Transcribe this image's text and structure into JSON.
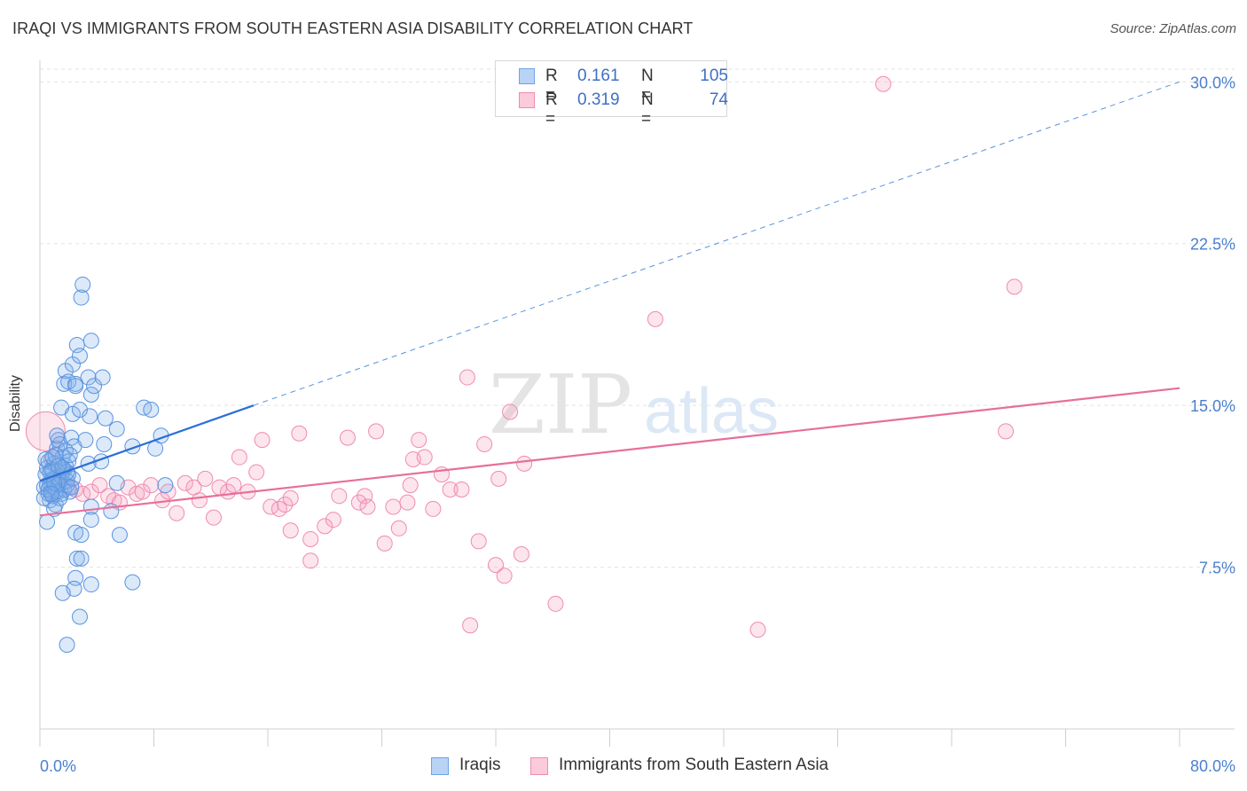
{
  "title": "IRAQI VS IMMIGRANTS FROM SOUTH EASTERN ASIA DISABILITY CORRELATION CHART",
  "source": "Source: ZipAtlas.com",
  "watermark": {
    "zip": "ZIP",
    "atlas": "atlas"
  },
  "legend": {
    "series1": {
      "r_label": "R =",
      "r_value": "0.161",
      "n_label": "N =",
      "n_value": "105",
      "color": "#6fa3e8"
    },
    "series2": {
      "r_label": "R =",
      "r_value": "0.319",
      "n_label": "N =",
      "n_value": "74",
      "color": "#f08bb0"
    }
  },
  "bottom_legend": {
    "series1": "Iraqis",
    "series2": "Immigrants from South Eastern Asia"
  },
  "chart_data": {
    "type": "scatter",
    "title": "IRAQI VS IMMIGRANTS FROM SOUTH EASTERN ASIA DISABILITY CORRELATION CHART",
    "xlabel": "",
    "ylabel": "Disability",
    "xlim": [
      0,
      80
    ],
    "ylim": [
      0,
      31
    ],
    "x_tick_labels": [
      {
        "value": 0,
        "label": "0.0%"
      },
      {
        "value": 80,
        "label": "80.0%"
      }
    ],
    "y_tick_labels": [
      {
        "value": 7.5,
        "label": "7.5%"
      },
      {
        "value": 15,
        "label": "15.0%"
      },
      {
        "value": 22.5,
        "label": "22.5%"
      },
      {
        "value": 30,
        "label": "30.0%"
      }
    ],
    "x_minor_ticks": [
      0,
      8,
      16,
      24,
      32,
      40,
      48,
      56,
      64,
      72,
      80
    ],
    "grid": true,
    "series": [
      {
        "name": "Iraqis",
        "color": "#6fa3e8",
        "trend": {
          "x0": 0,
          "y0": 11.5,
          "x1": 15,
          "y1": 15.0,
          "dashed_to_x": 80,
          "dashed_to_y": 30.0
        },
        "points": [
          [
            0.3,
            11.2
          ],
          [
            0.4,
            11.8
          ],
          [
            0.5,
            11.3
          ],
          [
            0.6,
            10.9
          ],
          [
            0.7,
            11.4
          ],
          [
            0.8,
            11.0
          ],
          [
            0.9,
            11.6
          ],
          [
            1.0,
            11.2
          ],
          [
            0.5,
            12.1
          ],
          [
            0.6,
            12.4
          ],
          [
            0.8,
            12.0
          ],
          [
            1.0,
            12.3
          ],
          [
            1.2,
            11.7
          ],
          [
            1.4,
            11.5
          ],
          [
            1.6,
            11.9
          ],
          [
            1.8,
            12.2
          ],
          [
            0.7,
            10.6
          ],
          [
            0.9,
            10.8
          ],
          [
            1.1,
            10.4
          ],
          [
            1.3,
            11.0
          ],
          [
            1.5,
            10.9
          ],
          [
            1.7,
            11.1
          ],
          [
            1.9,
            11.3
          ],
          [
            2.0,
            11.8
          ],
          [
            1.2,
            13.0
          ],
          [
            1.3,
            13.4
          ],
          [
            1.4,
            13.2
          ],
          [
            1.6,
            12.6
          ],
          [
            1.8,
            12.9
          ],
          [
            2.0,
            12.4
          ],
          [
            2.2,
            13.5
          ],
          [
            2.4,
            13.1
          ],
          [
            1.5,
            14.9
          ],
          [
            1.7,
            16.0
          ],
          [
            1.8,
            16.6
          ],
          [
            2.0,
            16.1
          ],
          [
            2.3,
            16.9
          ],
          [
            2.3,
            14.6
          ],
          [
            2.5,
            16.0
          ],
          [
            2.5,
            15.9
          ],
          [
            2.6,
            17.8
          ],
          [
            2.8,
            17.3
          ],
          [
            2.9,
            20.0
          ],
          [
            3.0,
            20.6
          ],
          [
            3.6,
            18.0
          ],
          [
            3.4,
            16.3
          ],
          [
            3.6,
            15.5
          ],
          [
            3.8,
            15.9
          ],
          [
            4.4,
            16.3
          ],
          [
            4.6,
            14.4
          ],
          [
            4.3,
            12.4
          ],
          [
            4.5,
            13.2
          ],
          [
            3.4,
            12.3
          ],
          [
            3.2,
            13.4
          ],
          [
            2.8,
            14.8
          ],
          [
            3.5,
            14.5
          ],
          [
            5.4,
            13.9
          ],
          [
            6.5,
            13.1
          ],
          [
            7.3,
            14.9
          ],
          [
            7.8,
            14.8
          ],
          [
            8.1,
            13.0
          ],
          [
            8.5,
            13.6
          ],
          [
            8.8,
            11.3
          ],
          [
            5.4,
            11.4
          ],
          [
            3.6,
            10.3
          ],
          [
            5.0,
            10.1
          ],
          [
            3.6,
            9.7
          ],
          [
            5.6,
            9.0
          ],
          [
            2.5,
            9.1
          ],
          [
            2.9,
            9.0
          ],
          [
            0.5,
            9.6
          ],
          [
            2.6,
            7.9
          ],
          [
            2.9,
            7.9
          ],
          [
            2.5,
            7.0
          ],
          [
            2.4,
            6.5
          ],
          [
            1.6,
            6.3
          ],
          [
            3.6,
            6.7
          ],
          [
            6.5,
            6.8
          ],
          [
            2.8,
            5.2
          ],
          [
            1.9,
            3.9
          ],
          [
            0.8,
            11.5
          ],
          [
            0.9,
            12.0
          ],
          [
            1.1,
            11.0
          ],
          [
            1.3,
            11.3
          ],
          [
            1.5,
            11.7
          ],
          [
            1.7,
            12.0
          ],
          [
            0.6,
            11.1
          ],
          [
            0.7,
            11.9
          ],
          [
            1.9,
            11.5
          ],
          [
            2.1,
            11.0
          ],
          [
            2.3,
            11.6
          ],
          [
            1.4,
            10.7
          ],
          [
            1.0,
            10.2
          ],
          [
            0.4,
            12.5
          ],
          [
            0.3,
            10.7
          ],
          [
            1.2,
            13.6
          ],
          [
            2.1,
            12.7
          ],
          [
            1.9,
            11.9
          ],
          [
            1.1,
            12.7
          ],
          [
            0.9,
            12.6
          ],
          [
            1.6,
            12.1
          ],
          [
            2.2,
            11.2
          ],
          [
            1.0,
            11.4
          ],
          [
            0.8,
            10.9
          ],
          [
            1.3,
            12.2
          ]
        ]
      },
      {
        "name": "Immigrants from South Eastern Asia",
        "color": "#f08bb0",
        "trend": {
          "x0": 0,
          "y0": 9.9,
          "x1": 80,
          "y1": 15.8
        },
        "points": [
          [
            0.4,
            13.8
          ],
          [
            0.8,
            12.5
          ],
          [
            1.5,
            11.8
          ],
          [
            2.0,
            11.2
          ],
          [
            2.5,
            11.1
          ],
          [
            3.0,
            10.9
          ],
          [
            3.6,
            11.0
          ],
          [
            4.2,
            11.3
          ],
          [
            4.8,
            10.8
          ],
          [
            5.2,
            10.6
          ],
          [
            5.6,
            10.5
          ],
          [
            6.2,
            11.2
          ],
          [
            6.8,
            10.9
          ],
          [
            7.2,
            11.0
          ],
          [
            7.8,
            11.3
          ],
          [
            8.6,
            10.6
          ],
          [
            9.0,
            11.0
          ],
          [
            9.6,
            10.0
          ],
          [
            10.2,
            11.4
          ],
          [
            10.8,
            11.2
          ],
          [
            11.2,
            10.6
          ],
          [
            11.6,
            11.6
          ],
          [
            12.2,
            9.8
          ],
          [
            12.6,
            11.2
          ],
          [
            13.2,
            11.0
          ],
          [
            13.6,
            11.3
          ],
          [
            14.0,
            12.6
          ],
          [
            14.6,
            11.0
          ],
          [
            15.2,
            11.9
          ],
          [
            15.6,
            13.4
          ],
          [
            16.2,
            10.3
          ],
          [
            16.8,
            10.2
          ],
          [
            17.2,
            10.4
          ],
          [
            17.6,
            10.7
          ],
          [
            17.6,
            9.2
          ],
          [
            18.2,
            13.7
          ],
          [
            19.0,
            8.8
          ],
          [
            19.0,
            7.8
          ],
          [
            20.0,
            9.4
          ],
          [
            20.6,
            9.7
          ],
          [
            21.0,
            10.8
          ],
          [
            21.6,
            13.5
          ],
          [
            22.4,
            10.5
          ],
          [
            22.8,
            10.8
          ],
          [
            23.0,
            10.3
          ],
          [
            23.6,
            13.8
          ],
          [
            24.2,
            8.6
          ],
          [
            24.8,
            10.3
          ],
          [
            25.2,
            9.3
          ],
          [
            25.8,
            10.5
          ],
          [
            26.0,
            11.3
          ],
          [
            26.2,
            12.5
          ],
          [
            26.6,
            13.4
          ],
          [
            27.0,
            12.6
          ],
          [
            27.6,
            10.2
          ],
          [
            28.2,
            11.8
          ],
          [
            28.8,
            11.1
          ],
          [
            29.6,
            11.1
          ],
          [
            30.0,
            16.3
          ],
          [
            30.2,
            4.8
          ],
          [
            30.8,
            8.7
          ],
          [
            31.2,
            13.2
          ],
          [
            32.0,
            7.6
          ],
          [
            32.2,
            11.6
          ],
          [
            32.6,
            7.1
          ],
          [
            33.0,
            14.7
          ],
          [
            33.8,
            8.1
          ],
          [
            34.0,
            12.3
          ],
          [
            36.2,
            5.8
          ],
          [
            43.2,
            19.0
          ],
          [
            50.4,
            4.6
          ],
          [
            59.2,
            29.9
          ],
          [
            67.8,
            13.8
          ],
          [
            68.4,
            20.5
          ]
        ]
      }
    ]
  }
}
